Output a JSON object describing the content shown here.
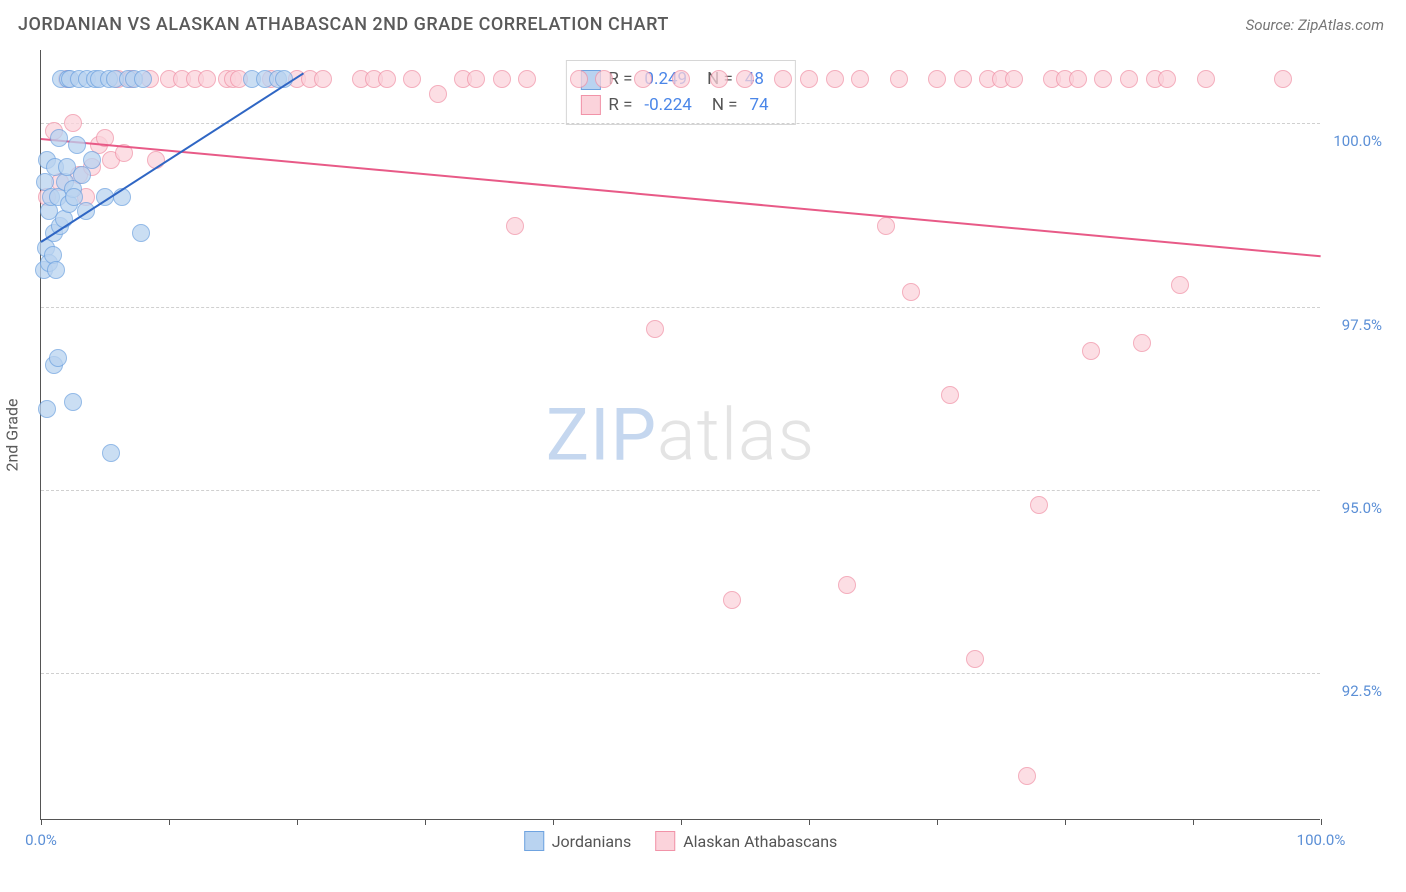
{
  "header": {
    "title": "JORDANIAN VS ALASKAN ATHABASCAN 2ND GRADE CORRELATION CHART",
    "source": "Source: ZipAtlas.com"
  },
  "chart": {
    "type": "scatter",
    "ylabel": "2nd Grade",
    "xlim": [
      0,
      100
    ],
    "ylim": [
      90.5,
      101.0
    ],
    "xtick_positions": [
      0,
      10,
      20,
      30,
      40,
      50,
      60,
      70,
      80,
      90,
      100
    ],
    "xtick_labels": {
      "0": "0.0%",
      "100": "100.0%"
    },
    "ytick_positions": [
      92.5,
      95.0,
      97.5,
      100.0
    ],
    "ytick_labels": [
      "92.5%",
      "95.0%",
      "97.5%",
      "100.0%"
    ],
    "background_color": "#ffffff",
    "grid_color": "#d0d0d0",
    "axis_color": "#555555",
    "marker_radius": 9,
    "marker_stroke_width": 1.5,
    "watermark": {
      "zip": "ZIP",
      "atlas": "atlas"
    }
  },
  "series": {
    "jordanians": {
      "label": "Jordanians",
      "fill_color": "#b9d3f0",
      "stroke_color": "#6fa3e0",
      "line_color": "#2f66c4",
      "R": "0.249",
      "N": "48",
      "trend": {
        "x1": 0,
        "y1": 98.4,
        "x2": 20.5,
        "y2": 100.7
      },
      "points": [
        [
          0.2,
          98.0
        ],
        [
          0.3,
          99.2
        ],
        [
          0.4,
          98.3
        ],
        [
          0.5,
          99.5
        ],
        [
          0.6,
          98.1
        ],
        [
          0.6,
          98.8
        ],
        [
          0.8,
          99.0
        ],
        [
          0.9,
          98.2
        ],
        [
          1.0,
          98.5
        ],
        [
          1.1,
          99.4
        ],
        [
          1.2,
          98.0
        ],
        [
          1.3,
          99.0
        ],
        [
          1.4,
          99.8
        ],
        [
          1.5,
          98.6
        ],
        [
          1.6,
          100.6
        ],
        [
          1.8,
          98.7
        ],
        [
          1.9,
          99.2
        ],
        [
          2.0,
          99.4
        ],
        [
          2.1,
          100.6
        ],
        [
          2.2,
          98.9
        ],
        [
          2.3,
          100.6
        ],
        [
          2.5,
          99.1
        ],
        [
          2.6,
          99.0
        ],
        [
          2.8,
          99.7
        ],
        [
          3.0,
          100.6
        ],
        [
          3.2,
          99.3
        ],
        [
          3.5,
          98.8
        ],
        [
          3.6,
          100.6
        ],
        [
          4.0,
          99.5
        ],
        [
          4.2,
          100.6
        ],
        [
          4.5,
          100.6
        ],
        [
          5.0,
          99.0
        ],
        [
          5.3,
          100.6
        ],
        [
          5.8,
          100.6
        ],
        [
          6.3,
          99.0
        ],
        [
          6.8,
          100.6
        ],
        [
          7.3,
          100.6
        ],
        [
          7.8,
          98.5
        ],
        [
          8.0,
          100.6
        ],
        [
          16.5,
          100.6
        ],
        [
          17.5,
          100.6
        ],
        [
          1.0,
          96.7
        ],
        [
          1.3,
          96.8
        ],
        [
          0.5,
          96.1
        ],
        [
          2.5,
          96.2
        ],
        [
          5.5,
          95.5
        ],
        [
          18.5,
          100.6
        ],
        [
          19.0,
          100.6
        ]
      ]
    },
    "athabascans": {
      "label": "Alaskan Athabascans",
      "fill_color": "#fbd3db",
      "stroke_color": "#f193a8",
      "line_color": "#e85a87",
      "R": "-0.224",
      "N": "74",
      "trend": {
        "x1": 0,
        "y1": 99.8,
        "x2": 100,
        "y2": 98.2
      },
      "points": [
        [
          0.5,
          99.0
        ],
        [
          1.0,
          99.9
        ],
        [
          1.5,
          99.2
        ],
        [
          2.0,
          100.6
        ],
        [
          2.5,
          100.0
        ],
        [
          3.0,
          99.3
        ],
        [
          3.5,
          99.0
        ],
        [
          4.0,
          99.4
        ],
        [
          4.5,
          99.7
        ],
        [
          5.0,
          99.8
        ],
        [
          5.5,
          99.5
        ],
        [
          6.0,
          100.6
        ],
        [
          6.5,
          99.6
        ],
        [
          7.0,
          100.6
        ],
        [
          8.5,
          100.6
        ],
        [
          9.0,
          99.5
        ],
        [
          10.0,
          100.6
        ],
        [
          11.0,
          100.6
        ],
        [
          12.0,
          100.6
        ],
        [
          13.0,
          100.6
        ],
        [
          14.5,
          100.6
        ],
        [
          15.0,
          100.6
        ],
        [
          15.5,
          100.6
        ],
        [
          18.0,
          100.6
        ],
        [
          20.0,
          100.6
        ],
        [
          21.0,
          100.6
        ],
        [
          22.0,
          100.6
        ],
        [
          25.0,
          100.6
        ],
        [
          26.0,
          100.6
        ],
        [
          27.0,
          100.6
        ],
        [
          29.0,
          100.6
        ],
        [
          31.0,
          100.4
        ],
        [
          33.0,
          100.6
        ],
        [
          34.0,
          100.6
        ],
        [
          36.0,
          100.6
        ],
        [
          37.0,
          98.6
        ],
        [
          38.0,
          100.6
        ],
        [
          42.0,
          100.6
        ],
        [
          44.0,
          100.6
        ],
        [
          47.0,
          100.6
        ],
        [
          48.0,
          97.2
        ],
        [
          50.0,
          100.6
        ],
        [
          53.0,
          100.6
        ],
        [
          54.0,
          93.5
        ],
        [
          55.0,
          100.6
        ],
        [
          58.0,
          100.6
        ],
        [
          60.0,
          100.6
        ],
        [
          62.0,
          100.6
        ],
        [
          63.0,
          93.7
        ],
        [
          64.0,
          100.6
        ],
        [
          66.0,
          98.6
        ],
        [
          67.0,
          100.6
        ],
        [
          68.0,
          97.7
        ],
        [
          70.0,
          100.6
        ],
        [
          71.0,
          96.3
        ],
        [
          72.0,
          100.6
        ],
        [
          73.0,
          92.7
        ],
        [
          74.0,
          100.6
        ],
        [
          75.0,
          100.6
        ],
        [
          76.0,
          100.6
        ],
        [
          77.0,
          91.1
        ],
        [
          78.0,
          94.8
        ],
        [
          79.0,
          100.6
        ],
        [
          80.0,
          100.6
        ],
        [
          81.0,
          100.6
        ],
        [
          82.0,
          96.9
        ],
        [
          83.0,
          100.6
        ],
        [
          85.0,
          100.6
        ],
        [
          86.0,
          97.0
        ],
        [
          87.0,
          100.6
        ],
        [
          88.0,
          100.6
        ],
        [
          89.0,
          97.8
        ],
        [
          91.0,
          100.6
        ],
        [
          97.0,
          100.6
        ]
      ]
    }
  },
  "legend": {
    "r_label": "R =",
    "n_label": "N ="
  }
}
